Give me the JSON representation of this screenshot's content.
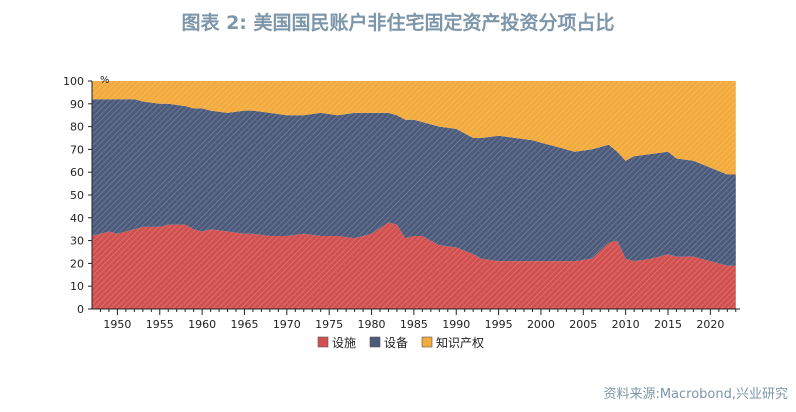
{
  "title": "图表 2:  美国国民账户非住宅固定资产投资分项占比",
  "source": "资料来源:Macrobond,兴业研究",
  "chart_data": {
    "type": "area",
    "stacked": true,
    "title": "图表 2:  美国国民账户非住宅固定资产投资分项占比",
    "ylabel": "%",
    "ylim": [
      0,
      100
    ],
    "xlim": [
      1947,
      2023.5
    ],
    "yticks": [
      0,
      10,
      20,
      30,
      40,
      50,
      60,
      70,
      80,
      90,
      100
    ],
    "xticks": [
      1950,
      1955,
      1960,
      1965,
      1970,
      1975,
      1980,
      1985,
      1990,
      1995,
      2000,
      2005,
      2010,
      2015,
      2020
    ],
    "legend_position": "bottom",
    "x": [
      1947,
      1949,
      1950,
      1951,
      1952,
      1953,
      1955,
      1956,
      1958,
      1959,
      1960,
      1961,
      1963,
      1965,
      1966,
      1968,
      1970,
      1972,
      1974,
      1976,
      1978,
      1980,
      1982,
      1983,
      1984,
      1985,
      1986,
      1988,
      1990,
      1992,
      1993,
      1995,
      1997,
      1999,
      2000,
      2002,
      2004,
      2006,
      2008,
      2009,
      2010,
      2011,
      2013,
      2015,
      2016,
      2018,
      2020,
      2022,
      2023
    ],
    "series": [
      {
        "name": "设施",
        "color": "#d2504f",
        "values": [
          32,
          34,
          33,
          34,
          35,
          36,
          36,
          37,
          37,
          35,
          34,
          35,
          34,
          33,
          33,
          32,
          32,
          33,
          32,
          32,
          31,
          33,
          38,
          37,
          31,
          32,
          32,
          28,
          27,
          24,
          22,
          21,
          21,
          21,
          21,
          21,
          21,
          22,
          29,
          30,
          22,
          21,
          22,
          24,
          23,
          23,
          21,
          19,
          19
        ]
      },
      {
        "name": "设备",
        "color": "#4c5b7c",
        "values": [
          60,
          58,
          59,
          58,
          57,
          55,
          54,
          53,
          52,
          53,
          54,
          52,
          52,
          54,
          54,
          54,
          53,
          52,
          54,
          53,
          55,
          53,
          48,
          48,
          52,
          51,
          50,
          52,
          52,
          51,
          53,
          55,
          54,
          53,
          52,
          50,
          48,
          48,
          43,
          39,
          43,
          46,
          46,
          45,
          43,
          42,
          41,
          40,
          40
        ]
      },
      {
        "name": "知识产权",
        "color": "#f3aa3c",
        "values": [
          8,
          8,
          8,
          8,
          8,
          9,
          10,
          10,
          11,
          12,
          12,
          13,
          14,
          13,
          13,
          14,
          15,
          15,
          14,
          15,
          14,
          14,
          14,
          15,
          17,
          17,
          18,
          20,
          21,
          25,
          25,
          24,
          25,
          26,
          27,
          29,
          31,
          30,
          28,
          31,
          35,
          33,
          32,
          31,
          34,
          35,
          38,
          41,
          41
        ]
      }
    ]
  }
}
